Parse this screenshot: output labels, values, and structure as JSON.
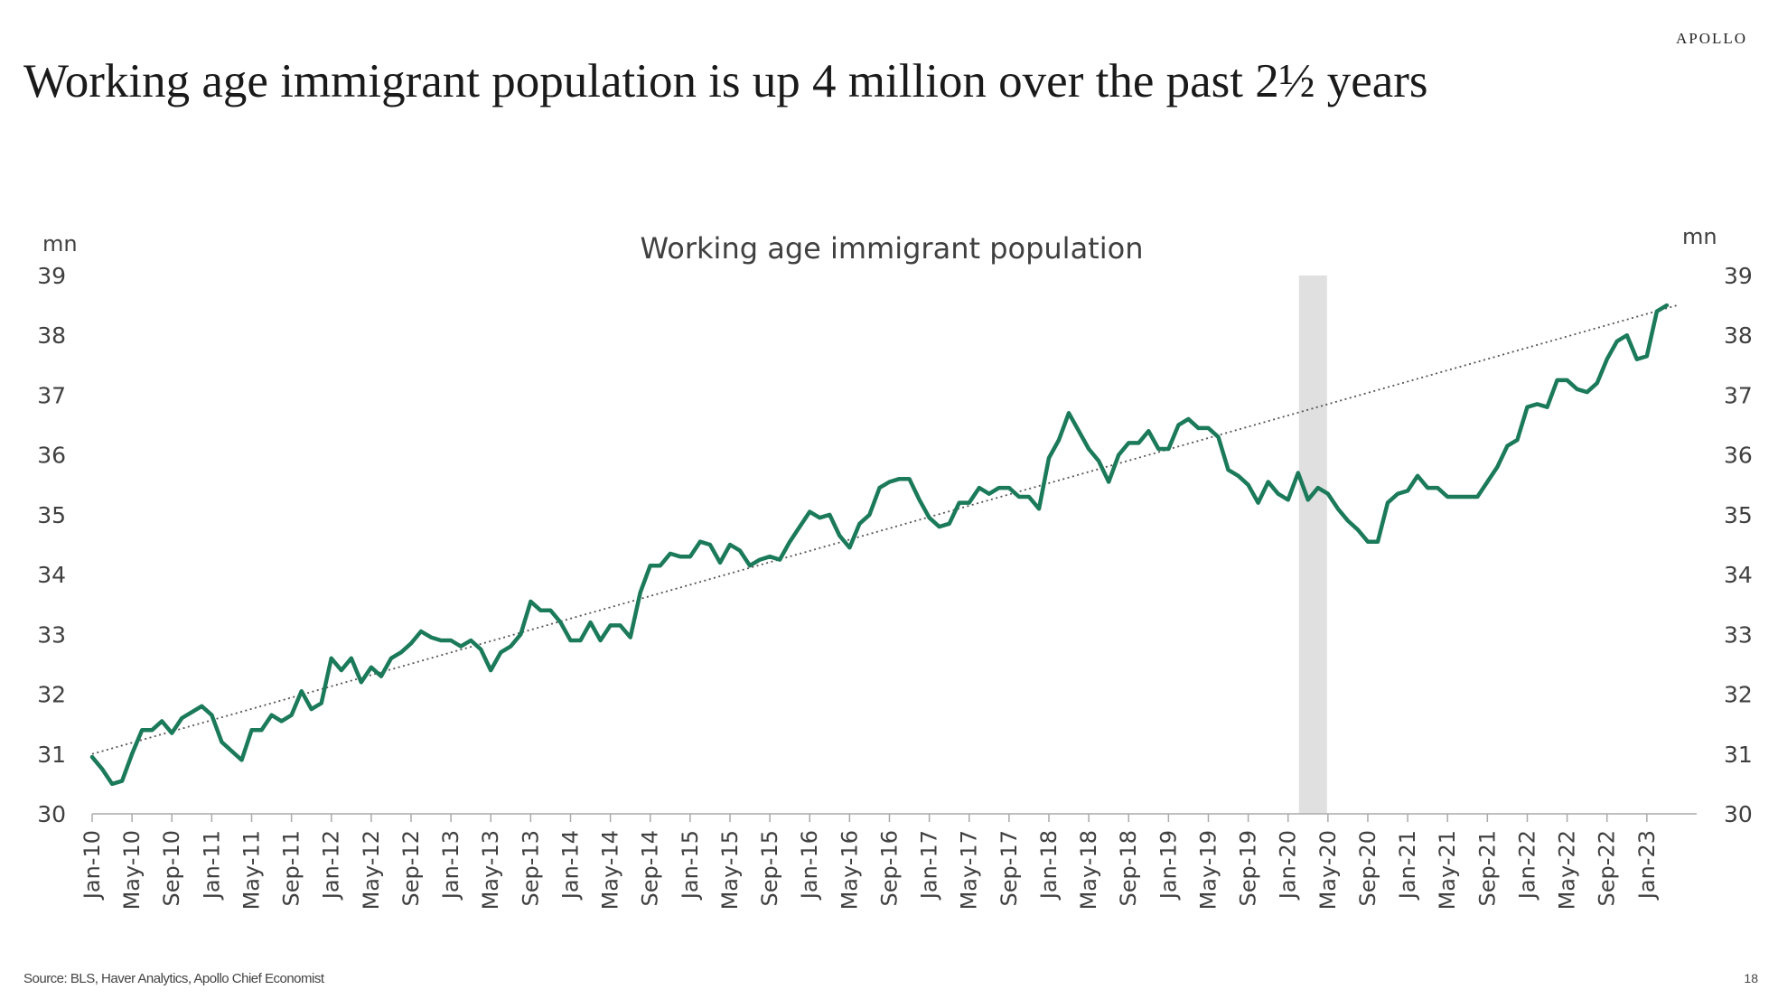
{
  "header": {
    "brand": "APOLLO",
    "title": "Working age immigrant population is up 4 million over the past 2½ years"
  },
  "footer": {
    "source": "Source: BLS, Haver Analytics, Apollo Chief Economist",
    "page_number": "18"
  },
  "colors": {
    "series": "#1b7a5a",
    "trend": "#555555",
    "recession_band": "#e0e0e0",
    "axis": "#aaaaaa",
    "text": "#404040"
  },
  "chart_data": {
    "type": "line",
    "title": "Working age immigrant population",
    "ylabel_left": "mn",
    "ylabel_right": "mn",
    "ylim": [
      30,
      39
    ],
    "yticks": [
      30,
      31,
      32,
      33,
      34,
      35,
      36,
      37,
      38,
      39
    ],
    "grid": false,
    "x_start": "Jan-10",
    "x_frequency": "monthly",
    "xticks": [
      "Jan-10",
      "May-10",
      "Sep-10",
      "Jan-11",
      "May-11",
      "Sep-11",
      "Jan-12",
      "May-12",
      "Sep-12",
      "Jan-13",
      "May-13",
      "Sep-13",
      "Jan-14",
      "May-14",
      "Sep-14",
      "Jan-15",
      "May-15",
      "Sep-15",
      "Jan-16",
      "May-16",
      "Sep-16",
      "Jan-17",
      "May-17",
      "Sep-17",
      "Jan-18",
      "May-18",
      "Sep-18",
      "Jan-19",
      "May-19",
      "Sep-19",
      "Jan-20",
      "May-20",
      "Sep-20",
      "Jan-21",
      "May-21",
      "Sep-21",
      "Jan-22",
      "May-22",
      "Sep-22",
      "Jan-23"
    ],
    "recession_shading": {
      "start": "Mar-20",
      "end": "Apr-20"
    },
    "trend_line": {
      "start": {
        "x": "Jan-10",
        "y": 31.0
      },
      "end": {
        "x": "Apr-23",
        "y": 38.5
      }
    },
    "series": [
      {
        "values": [
          30.95,
          30.75,
          30.5,
          30.55,
          31.0,
          31.4,
          31.4,
          31.55,
          31.35,
          31.6,
          31.7,
          31.8,
          31.65,
          31.2,
          31.05,
          30.9,
          31.4,
          31.4,
          31.65,
          31.55,
          31.65,
          32.05,
          31.75,
          31.85,
          32.6,
          32.4,
          32.6,
          32.2,
          32.45,
          32.3,
          32.6,
          32.7,
          32.85,
          33.05,
          32.95,
          32.9,
          32.9,
          32.8,
          32.9,
          32.75,
          32.4,
          32.7,
          32.8,
          33.0,
          33.55,
          33.4,
          33.4,
          33.2,
          32.9,
          32.9,
          33.2,
          32.9,
          33.15,
          33.15,
          32.95,
          33.7,
          34.15,
          34.15,
          34.35,
          34.3,
          34.3,
          34.55,
          34.5,
          34.2,
          34.5,
          34.4,
          34.15,
          34.25,
          34.3,
          34.25,
          34.55,
          34.8,
          35.05,
          34.95,
          35.0,
          34.65,
          34.45,
          34.85,
          35.0,
          35.45,
          35.55,
          35.6,
          35.6,
          35.25,
          34.95,
          34.8,
          34.85,
          35.2,
          35.2,
          35.45,
          35.35,
          35.45,
          35.45,
          35.3,
          35.3,
          35.1,
          35.95,
          36.25,
          36.7,
          36.4,
          36.1,
          35.9,
          35.55,
          36.0,
          36.2,
          36.2,
          36.4,
          36.1,
          36.1,
          36.5,
          36.6,
          36.45,
          36.45,
          36.3,
          35.75,
          35.65,
          35.5,
          35.2,
          35.55,
          35.35,
          35.25,
          35.7,
          35.25,
          35.45,
          35.35,
          35.1,
          34.9,
          34.75,
          34.55,
          34.55,
          35.2,
          35.35,
          35.4,
          35.65,
          35.45,
          35.45,
          35.3,
          35.3,
          35.3,
          35.3,
          35.55,
          35.8,
          36.15,
          36.25,
          36.8,
          36.85,
          36.8,
          37.25,
          37.25,
          37.1,
          37.05,
          37.2,
          37.6,
          37.9,
          38.0,
          37.6,
          37.65,
          38.4,
          38.5
        ]
      }
    ]
  }
}
